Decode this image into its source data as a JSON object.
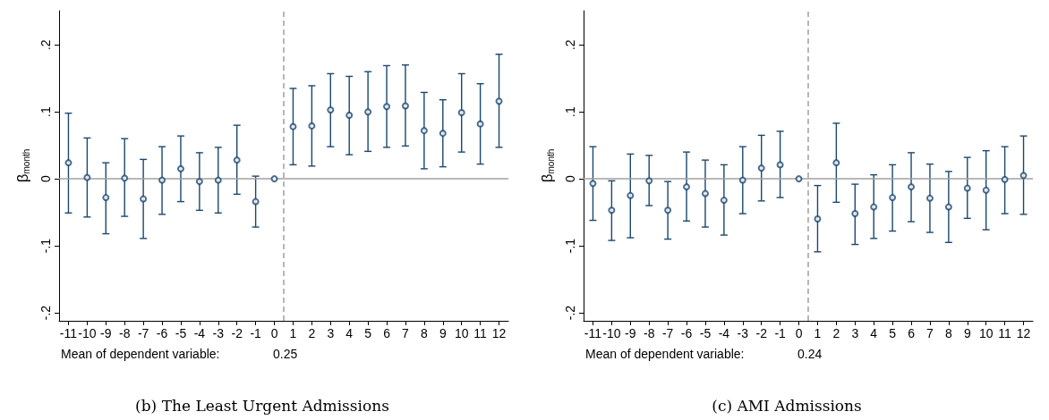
{
  "chart_data": [
    {
      "type": "scatter",
      "title": "(b) The Least Urgent Admissions",
      "ylabel": "β$_{month}$",
      "annotations": [
        "Mean of dependent variable:",
        "0.25"
      ],
      "x": [
        -11,
        -10,
        -9,
        -8,
        -7,
        -6,
        -5,
        -4,
        -3,
        -2,
        -1,
        0,
        1,
        2,
        3,
        4,
        5,
        6,
        7,
        8,
        9,
        10,
        11,
        12
      ],
      "series": [
        {
          "color": "#1a476f",
          "values": [
            0.024,
            0.002,
            -0.028,
            0.001,
            -0.03,
            -0.002,
            0.015,
            -0.004,
            -0.002,
            0.028,
            -0.034,
            0,
            0.078,
            0.079,
            0.103,
            0.095,
            0.1,
            0.108,
            0.109,
            0.072,
            0.068,
            0.099,
            0.082,
            0.116
          ],
          "errors": [
            [
              -0.051,
              0.098
            ],
            [
              -0.057,
              0.061
            ],
            [
              -0.082,
              0.024
            ],
            [
              -0.056,
              0.06
            ],
            [
              -0.089,
              0.029
            ],
            [
              -0.053,
              0.048
            ],
            [
              -0.034,
              0.064
            ],
            [
              -0.047,
              0.039
            ],
            [
              -0.051,
              0.047
            ],
            [
              -0.023,
              0.08
            ],
            [
              -0.072,
              0.004
            ],
            null,
            [
              0.021,
              0.135
            ],
            [
              0.019,
              0.139
            ],
            [
              0.048,
              0.157
            ],
            [
              0.036,
              0.153
            ],
            [
              0.041,
              0.16
            ],
            [
              0.047,
              0.169
            ],
            [
              0.049,
              0.17
            ],
            [
              0.015,
              0.129
            ],
            [
              0.018,
              0.118
            ],
            [
              0.04,
              0.157
            ],
            [
              0.022,
              0.142
            ],
            [
              0.047,
              0.186
            ]
          ]
        }
      ],
      "xlim": [
        -11.5,
        12.5
      ],
      "xticks": [
        -11,
        -10,
        -9,
        -8,
        -7,
        -6,
        -5,
        -4,
        -3,
        -2,
        -1,
        0,
        1,
        2,
        3,
        4,
        5,
        6,
        7,
        8,
        9,
        10,
        11,
        12
      ],
      "ylim": [
        -0.212,
        0.251
      ],
      "yticks": [
        {
          "value": -0.2,
          "label": "-.2"
        },
        {
          "value": -0.1,
          "label": "-.1"
        },
        0,
        {
          "value": 0.1,
          "label": ".1"
        },
        {
          "value": 0.2,
          "label": ".2"
        }
      ],
      "ref_lines": [
        {
          "axis": "y",
          "value": 0,
          "color": "#a0a0a0",
          "line_style": "solid"
        },
        {
          "axis": "x",
          "value": 0.5,
          "color": "#a0a0a0",
          "line_style": "dashed"
        }
      ],
      "grid": false,
      "marker": "circle"
    },
    {
      "type": "scatter",
      "title": "(c) AMI Admissions",
      "ylabel": "β$_{month}$",
      "annotations": [
        "Mean of dependent variable:",
        "0.24"
      ],
      "x": [
        -11,
        -10,
        -9,
        -8,
        -7,
        -6,
        -5,
        -4,
        -3,
        -2,
        -1,
        0,
        1,
        2,
        3,
        4,
        5,
        6,
        7,
        8,
        9,
        10,
        11,
        12
      ],
      "series": [
        {
          "color": "#1a476f",
          "values": [
            -0.007,
            -0.047,
            -0.025,
            -0.003,
            -0.047,
            -0.012,
            -0.022,
            -0.032,
            -0.002,
            0.016,
            0.021,
            0,
            -0.06,
            0.024,
            -0.052,
            -0.042,
            -0.028,
            -0.012,
            -0.029,
            -0.042,
            -0.014,
            -0.017,
            -0.001,
            0.005
          ],
          "errors": [
            [
              -0.062,
              0.048
            ],
            [
              -0.092,
              -0.003
            ],
            [
              -0.088,
              0.037
            ],
            [
              -0.04,
              0.035
            ],
            [
              -0.09,
              -0.004
            ],
            [
              -0.063,
              0.04
            ],
            [
              -0.072,
              0.028
            ],
            [
              -0.084,
              0.021
            ],
            [
              -0.052,
              0.048
            ],
            [
              -0.033,
              0.065
            ],
            [
              -0.028,
              0.071
            ],
            null,
            [
              -0.109,
              -0.01
            ],
            [
              -0.035,
              0.083
            ],
            [
              -0.098,
              -0.008
            ],
            [
              -0.089,
              0.006
            ],
            [
              -0.078,
              0.021
            ],
            [
              -0.064,
              0.039
            ],
            [
              -0.08,
              0.022
            ],
            [
              -0.095,
              0.011
            ],
            [
              -0.059,
              0.032
            ],
            [
              -0.076,
              0.042
            ],
            [
              -0.052,
              0.048
            ],
            [
              -0.053,
              0.064
            ]
          ]
        }
      ],
      "xlim": [
        -11.5,
        12.5
      ],
      "xticks": [
        -11,
        -10,
        -9,
        -8,
        -7,
        -6,
        -5,
        -4,
        -3,
        -2,
        -1,
        0,
        1,
        2,
        3,
        4,
        5,
        6,
        7,
        8,
        9,
        10,
        11,
        12
      ],
      "ylim": [
        -0.212,
        0.251
      ],
      "yticks": [
        {
          "value": -0.2,
          "label": "-.2"
        },
        {
          "value": -0.1,
          "label": "-.1"
        },
        0,
        {
          "value": 0.1,
          "label": ".1"
        },
        {
          "value": 0.2,
          "label": ".2"
        }
      ],
      "ref_lines": [
        {
          "axis": "y",
          "value": 0,
          "color": "#a0a0a0",
          "line_style": "solid"
        },
        {
          "axis": "x",
          "value": 0.5,
          "color": "#a0a0a0",
          "line_style": "dashed"
        }
      ],
      "grid": false,
      "marker": "circle"
    }
  ]
}
